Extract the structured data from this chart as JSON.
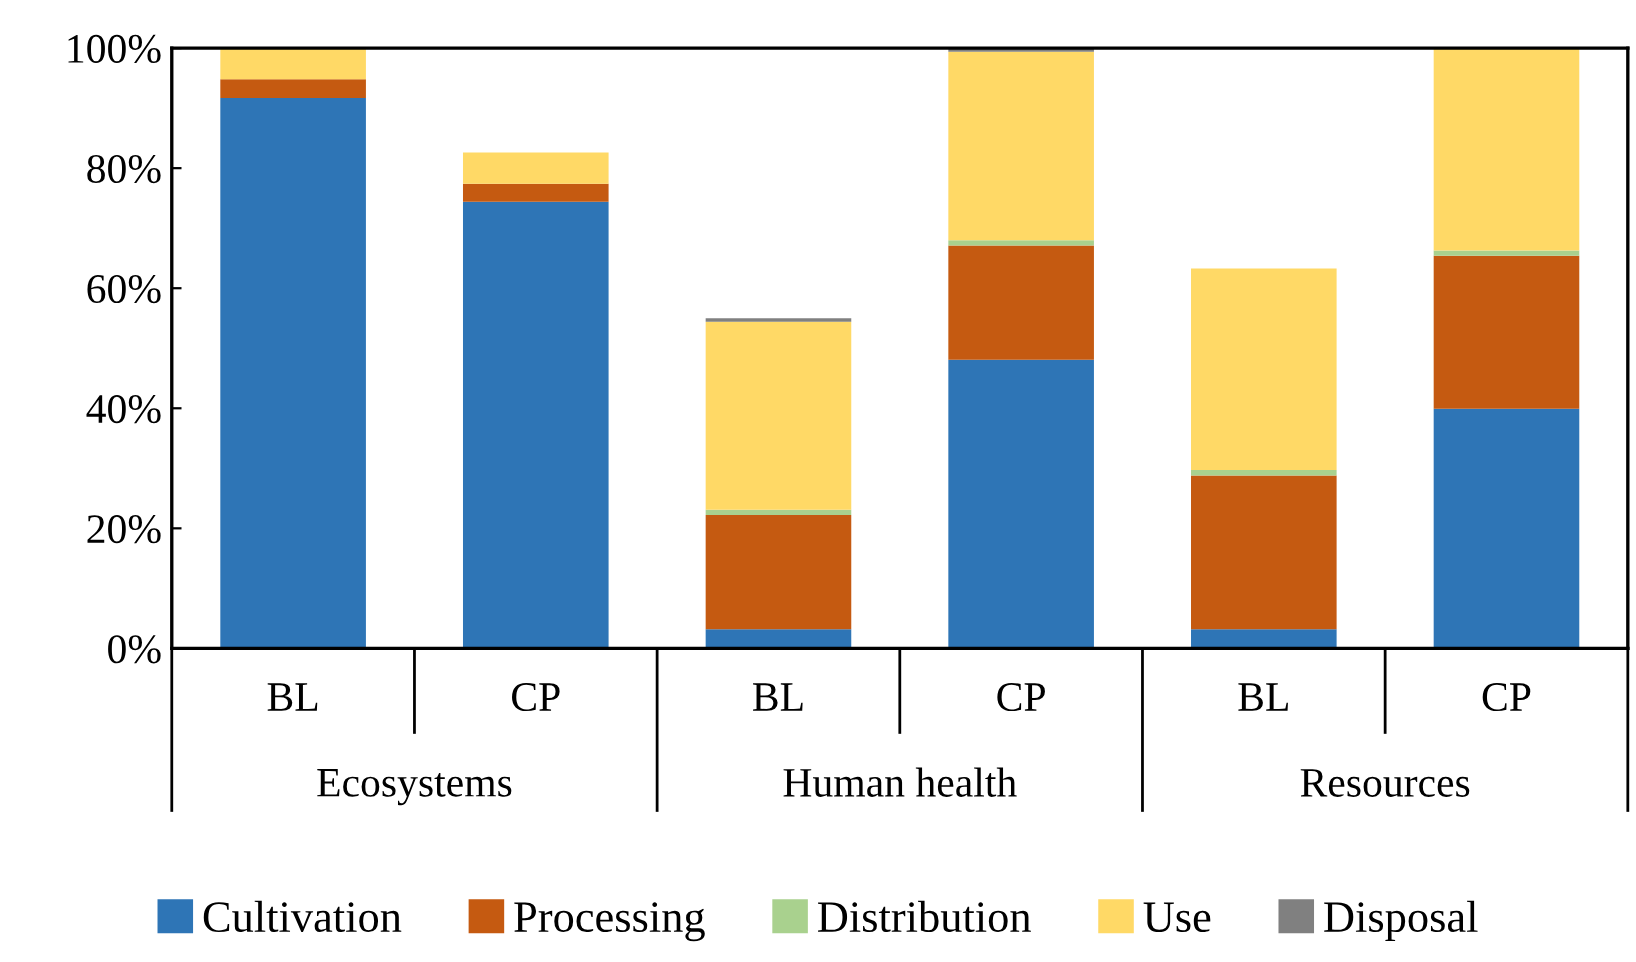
{
  "chart_data": {
    "type": "bar",
    "stacked": true,
    "categories": [
      "BL",
      "CP",
      "BL",
      "CP",
      "BL",
      "CP"
    ],
    "series": [
      {
        "name": "Cultivation",
        "color": "#2e75b6",
        "values": [
          91.7,
          74.4,
          3.2,
          48.1,
          3.2,
          39.9
        ]
      },
      {
        "name": "Processing",
        "color": "#c55a11",
        "values": [
          3.1,
          3.0,
          19.0,
          19.0,
          25.6,
          25.5
        ]
      },
      {
        "name": "Distribution",
        "color": "#a9d18e",
        "values": [
          0,
          0,
          0.9,
          0.9,
          0.9,
          0.9
        ]
      },
      {
        "name": "Use",
        "color": "#ffd966",
        "values": [
          5.2,
          5.2,
          31.3,
          31.4,
          33.6,
          33.7
        ]
      },
      {
        "name": "Disposal",
        "color": "#808080",
        "values": [
          0,
          0,
          0.6,
          0.6,
          0,
          0
        ]
      }
    ],
    "annotations": [
      "Ecosystems",
      "Human health",
      "Resources"
    ],
    "ylim": [
      0,
      100
    ],
    "yticks": [
      {
        "value": 0,
        "label": "0%"
      },
      {
        "value": 20,
        "label": "20%"
      },
      {
        "value": 40,
        "label": "40%"
      },
      {
        "value": 60,
        "label": "60%"
      },
      {
        "value": 80,
        "label": "80%"
      },
      {
        "value": 100,
        "label": "100%"
      }
    ],
    "grid": false,
    "legend": "bottom"
  }
}
